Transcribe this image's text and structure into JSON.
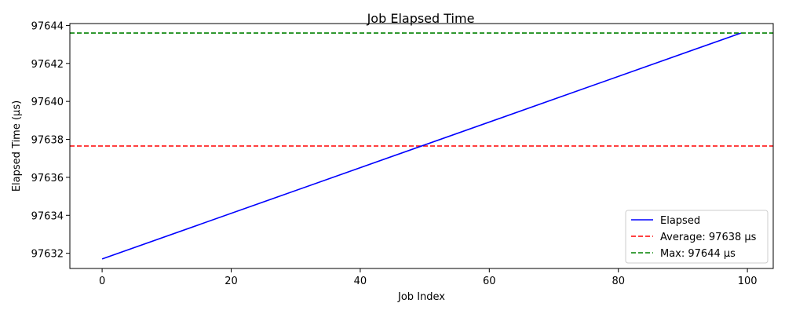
{
  "chart_data": {
    "type": "line",
    "title": "Job Elapsed Time",
    "xlabel": "Job Index",
    "ylabel": "Elapsed Time (µs)",
    "xlim": [
      -5,
      104
    ],
    "ylim": [
      97631.2,
      97644.1
    ],
    "xticks": [
      0,
      20,
      40,
      60,
      80,
      100
    ],
    "yticks": [
      97632,
      97634,
      97636,
      97638,
      97640,
      97642,
      97644
    ],
    "grid": false,
    "legend_position": "lower-right",
    "series": [
      {
        "name": "Elapsed",
        "color": "#0000ff",
        "style": "solid",
        "x": [
          0,
          99
        ],
        "y": [
          97631.7,
          97643.6
        ]
      }
    ],
    "reference_lines": [
      {
        "name": "Average: 97638 µs",
        "color": "#ff0000",
        "style": "dashed",
        "y": 97637.65
      },
      {
        "name": "Max: 97644 µs",
        "color": "#008000",
        "style": "dashed",
        "y": 97643.6
      }
    ]
  }
}
